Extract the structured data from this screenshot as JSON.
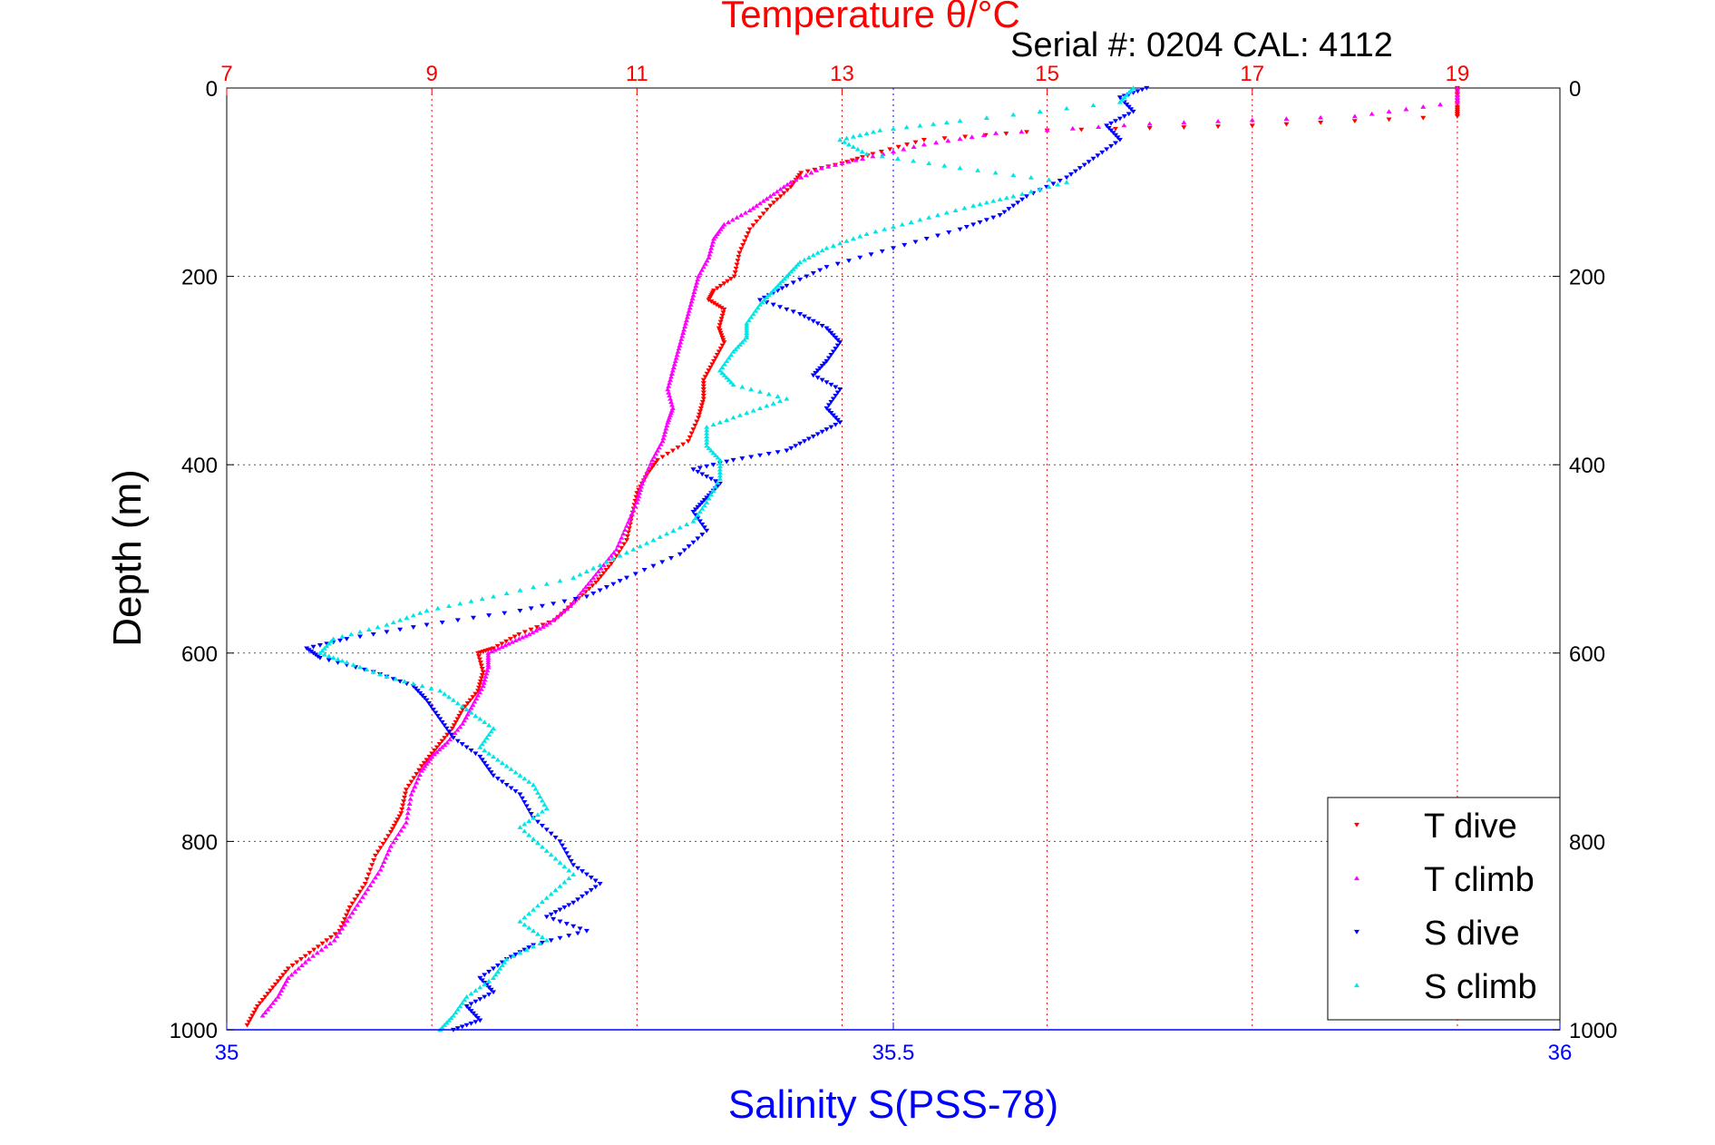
{
  "chart_data": {
    "type": "scatter",
    "title": "Temperature θ/°C",
    "subtitle": "Serial #: 0204  CAL: 4112",
    "ylabel": "Depth (m)",
    "xlabel": "Salinity S(PSS-78)",
    "depth_axis": {
      "range": [
        0,
        1000
      ],
      "ticks": [
        0,
        200,
        400,
        600,
        800,
        1000
      ],
      "labels": [
        "0",
        "200",
        "400",
        "600",
        "800",
        "1000"
      ],
      "direction": "down"
    },
    "temperature_axis": {
      "position": "top",
      "range": [
        7,
        20
      ],
      "ticks": [
        7,
        9,
        11,
        13,
        15,
        17,
        19
      ],
      "labels": [
        "7",
        "9",
        "11",
        "13",
        "15",
        "17",
        "19"
      ],
      "color": "#ff0000"
    },
    "salinity_axis": {
      "position": "bottom",
      "range": [
        35,
        36
      ],
      "ticks": [
        35,
        35.5,
        36
      ],
      "labels": [
        "35",
        "35.5",
        "36"
      ],
      "color": "#0000ff"
    },
    "grid": true,
    "legend": {
      "position": "bottom-right",
      "entries": [
        "T dive",
        "T climb",
        "S dive",
        "S climb"
      ]
    },
    "series": [
      {
        "name": "T dive",
        "axis": "temperature",
        "color": "#ff0000",
        "marker": "triangle-down",
        "points": [
          [
            19.0,
            0
          ],
          [
            19.0,
            20
          ],
          [
            19.0,
            30
          ],
          [
            17.0,
            40
          ],
          [
            15.0,
            45
          ],
          [
            13.8,
            55
          ],
          [
            13.3,
            70
          ],
          [
            13.0,
            80
          ],
          [
            12.6,
            90
          ],
          [
            12.5,
            105
          ],
          [
            12.3,
            125
          ],
          [
            12.1,
            150
          ],
          [
            12.0,
            175
          ],
          [
            11.95,
            200
          ],
          [
            11.75,
            215
          ],
          [
            11.7,
            225
          ],
          [
            11.85,
            235
          ],
          [
            11.8,
            255
          ],
          [
            11.85,
            270
          ],
          [
            11.75,
            290
          ],
          [
            11.65,
            310
          ],
          [
            11.65,
            330
          ],
          [
            11.6,
            350
          ],
          [
            11.5,
            375
          ],
          [
            11.2,
            395
          ],
          [
            11.1,
            410
          ],
          [
            11.0,
            430
          ],
          [
            10.95,
            455
          ],
          [
            10.9,
            480
          ],
          [
            10.75,
            505
          ],
          [
            10.6,
            525
          ],
          [
            10.4,
            545
          ],
          [
            10.2,
            565
          ],
          [
            9.85,
            580
          ],
          [
            9.6,
            595
          ],
          [
            9.45,
            600
          ],
          [
            9.5,
            620
          ],
          [
            9.45,
            640
          ],
          [
            9.3,
            660
          ],
          [
            9.2,
            680
          ],
          [
            9.05,
            700
          ],
          [
            8.9,
            720
          ],
          [
            8.75,
            745
          ],
          [
            8.7,
            770
          ],
          [
            8.6,
            790
          ],
          [
            8.45,
            815
          ],
          [
            8.35,
            845
          ],
          [
            8.2,
            870
          ],
          [
            8.1,
            895
          ],
          [
            7.85,
            915
          ],
          [
            7.6,
            935
          ],
          [
            7.45,
            955
          ],
          [
            7.3,
            975
          ],
          [
            7.2,
            995
          ]
        ]
      },
      {
        "name": "T climb",
        "axis": "temperature",
        "color": "#ff00ff",
        "marker": "triangle-up",
        "points": [
          [
            19.0,
            0
          ],
          [
            19.0,
            15
          ],
          [
            18.0,
            30
          ],
          [
            16.0,
            38
          ],
          [
            14.5,
            48
          ],
          [
            13.8,
            60
          ],
          [
            13.2,
            75
          ],
          [
            12.8,
            85
          ],
          [
            12.5,
            100
          ],
          [
            12.3,
            115
          ],
          [
            12.1,
            130
          ],
          [
            11.85,
            145
          ],
          [
            11.75,
            160
          ],
          [
            11.7,
            180
          ],
          [
            11.6,
            200
          ],
          [
            11.55,
            220
          ],
          [
            11.5,
            240
          ],
          [
            11.45,
            260
          ],
          [
            11.4,
            280
          ],
          [
            11.35,
            300
          ],
          [
            11.3,
            320
          ],
          [
            11.35,
            340
          ],
          [
            11.3,
            355
          ],
          [
            11.25,
            375
          ],
          [
            11.15,
            395
          ],
          [
            11.05,
            420
          ],
          [
            11.0,
            440
          ],
          [
            10.9,
            465
          ],
          [
            10.8,
            490
          ],
          [
            10.65,
            510
          ],
          [
            10.5,
            530
          ],
          [
            10.35,
            550
          ],
          [
            10.15,
            568
          ],
          [
            9.95,
            580
          ],
          [
            9.75,
            590
          ],
          [
            9.55,
            600
          ],
          [
            9.55,
            615
          ],
          [
            9.5,
            635
          ],
          [
            9.4,
            655
          ],
          [
            9.3,
            675
          ],
          [
            9.15,
            695
          ],
          [
            9.0,
            710
          ],
          [
            8.9,
            725
          ],
          [
            8.8,
            750
          ],
          [
            8.75,
            780
          ],
          [
            8.6,
            805
          ],
          [
            8.5,
            830
          ],
          [
            8.35,
            855
          ],
          [
            8.2,
            880
          ],
          [
            8.05,
            905
          ],
          [
            7.8,
            925
          ],
          [
            7.6,
            945
          ],
          [
            7.5,
            965
          ],
          [
            7.35,
            985
          ]
        ]
      },
      {
        "name": "S dive",
        "axis": "salinity",
        "color": "#0000ff",
        "marker": "triangle-down",
        "points": [
          [
            35.69,
            0
          ],
          [
            35.67,
            10
          ],
          [
            35.68,
            25
          ],
          [
            35.66,
            40
          ],
          [
            35.67,
            55
          ],
          [
            35.65,
            75
          ],
          [
            35.63,
            95
          ],
          [
            35.6,
            115
          ],
          [
            35.58,
            135
          ],
          [
            35.55,
            150
          ],
          [
            35.5,
            170
          ],
          [
            35.45,
            190
          ],
          [
            35.42,
            210
          ],
          [
            35.4,
            225
          ],
          [
            35.43,
            240
          ],
          [
            35.45,
            255
          ],
          [
            35.46,
            270
          ],
          [
            35.45,
            290
          ],
          [
            35.44,
            305
          ],
          [
            35.46,
            320
          ],
          [
            35.45,
            340
          ],
          [
            35.46,
            355
          ],
          [
            35.44,
            370
          ],
          [
            35.42,
            385
          ],
          [
            35.38,
            395
          ],
          [
            35.35,
            405
          ],
          [
            35.37,
            420
          ],
          [
            35.36,
            435
          ],
          [
            35.35,
            450
          ],
          [
            35.36,
            470
          ],
          [
            35.34,
            495
          ],
          [
            35.3,
            520
          ],
          [
            35.27,
            540
          ],
          [
            35.22,
            555
          ],
          [
            35.15,
            570
          ],
          [
            35.09,
            585
          ],
          [
            35.06,
            595
          ],
          [
            35.07,
            605
          ],
          [
            35.11,
            620
          ],
          [
            35.14,
            635
          ],
          [
            35.15,
            650
          ],
          [
            35.16,
            670
          ],
          [
            35.17,
            690
          ],
          [
            35.19,
            710
          ],
          [
            35.2,
            730
          ],
          [
            35.22,
            750
          ],
          [
            35.23,
            775
          ],
          [
            35.25,
            800
          ],
          [
            35.26,
            825
          ],
          [
            35.28,
            845
          ],
          [
            35.26,
            865
          ],
          [
            35.24,
            880
          ],
          [
            35.27,
            895
          ],
          [
            35.23,
            910
          ],
          [
            35.21,
            925
          ],
          [
            35.19,
            945
          ],
          [
            35.2,
            960
          ],
          [
            35.18,
            975
          ],
          [
            35.19,
            990
          ],
          [
            35.17,
            1000
          ]
        ]
      },
      {
        "name": "S climb",
        "axis": "salinity",
        "color": "#00e6e6",
        "marker": "triangle-up",
        "points": [
          [
            35.68,
            0
          ],
          [
            35.67,
            15
          ],
          [
            35.55,
            35
          ],
          [
            35.49,
            45
          ],
          [
            35.46,
            55
          ],
          [
            35.48,
            70
          ],
          [
            35.55,
            85
          ],
          [
            35.63,
            100
          ],
          [
            35.59,
            115
          ],
          [
            35.56,
            125
          ],
          [
            35.52,
            140
          ],
          [
            35.48,
            155
          ],
          [
            35.45,
            170
          ],
          [
            35.43,
            185
          ],
          [
            35.42,
            200
          ],
          [
            35.41,
            215
          ],
          [
            35.4,
            230
          ],
          [
            35.39,
            250
          ],
          [
            35.39,
            265
          ],
          [
            35.38,
            280
          ],
          [
            35.37,
            300
          ],
          [
            35.38,
            315
          ],
          [
            35.42,
            330
          ],
          [
            35.39,
            345
          ],
          [
            35.36,
            360
          ],
          [
            35.36,
            380
          ],
          [
            35.37,
            395
          ],
          [
            35.37,
            415
          ],
          [
            35.36,
            440
          ],
          [
            35.35,
            460
          ],
          [
            35.32,
            480
          ],
          [
            35.29,
            500
          ],
          [
            35.26,
            520
          ],
          [
            35.2,
            540
          ],
          [
            35.15,
            555
          ],
          [
            35.12,
            570
          ],
          [
            35.08,
            585
          ],
          [
            35.07,
            600
          ],
          [
            35.09,
            610
          ],
          [
            35.12,
            625
          ],
          [
            35.16,
            640
          ],
          [
            35.18,
            660
          ],
          [
            35.2,
            680
          ],
          [
            35.19,
            700
          ],
          [
            35.21,
            720
          ],
          [
            35.23,
            740
          ],
          [
            35.24,
            765
          ],
          [
            35.22,
            785
          ],
          [
            35.24,
            810
          ],
          [
            35.26,
            835
          ],
          [
            35.24,
            860
          ],
          [
            35.22,
            885
          ],
          [
            35.24,
            905
          ],
          [
            35.21,
            925
          ],
          [
            35.2,
            945
          ],
          [
            35.18,
            965
          ],
          [
            35.17,
            985
          ],
          [
            35.16,
            1000
          ]
        ]
      }
    ]
  }
}
